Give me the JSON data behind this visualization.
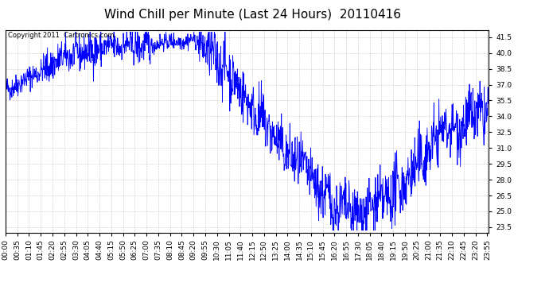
{
  "title": "Wind Chill per Minute (Last 24 Hours)  20110416",
  "copyright_text": "Copyright 2011  Cartronics.com",
  "line_color": "#0000ff",
  "background_color": "#ffffff",
  "grid_color": "#bbbbbb",
  "ylim": [
    23.0,
    42.2
  ],
  "yticks": [
    23.5,
    25.0,
    26.5,
    28.0,
    29.5,
    31.0,
    32.5,
    34.0,
    35.5,
    37.0,
    38.5,
    40.0,
    41.5
  ],
  "title_fontsize": 11,
  "tick_fontsize": 6.5,
  "copyright_fontsize": 6,
  "xtick_labels": [
    "00:00",
    "00:35",
    "01:10",
    "01:45",
    "02:20",
    "02:55",
    "03:30",
    "04:05",
    "04:40",
    "05:15",
    "05:50",
    "06:25",
    "07:00",
    "07:35",
    "08:10",
    "08:45",
    "09:20",
    "09:55",
    "10:30",
    "11:05",
    "11:40",
    "12:15",
    "12:50",
    "13:25",
    "14:00",
    "14:35",
    "15:10",
    "15:45",
    "16:20",
    "16:55",
    "17:30",
    "18:05",
    "18:40",
    "19:15",
    "19:50",
    "20:25",
    "21:00",
    "21:35",
    "22:10",
    "22:45",
    "23:20",
    "23:55"
  ],
  "n_minutes": 1440,
  "seed": 42,
  "base_keypoints_t": [
    0.0,
    0.02,
    0.06,
    0.12,
    0.17,
    0.22,
    0.25,
    0.28,
    0.32,
    0.36,
    0.39,
    0.42,
    0.46,
    0.5,
    0.54,
    0.58,
    0.62,
    0.65,
    0.68,
    0.72,
    0.78,
    0.85,
    0.9,
    0.95,
    1.0
  ],
  "base_keypoints_v": [
    36.5,
    37.0,
    38.0,
    39.5,
    40.2,
    40.5,
    40.8,
    40.5,
    41.0,
    41.2,
    41.3,
    40.0,
    38.5,
    35.5,
    33.0,
    30.5,
    28.5,
    27.0,
    25.5,
    24.5,
    25.5,
    29.0,
    32.5,
    33.5,
    34.0
  ],
  "noise_regions": {
    "t_breaks": [
      0.08,
      0.3,
      0.4,
      0.65,
      1.0
    ],
    "scales": [
      0.8,
      1.2,
      0.6,
      1.8,
      2.0
    ]
  }
}
